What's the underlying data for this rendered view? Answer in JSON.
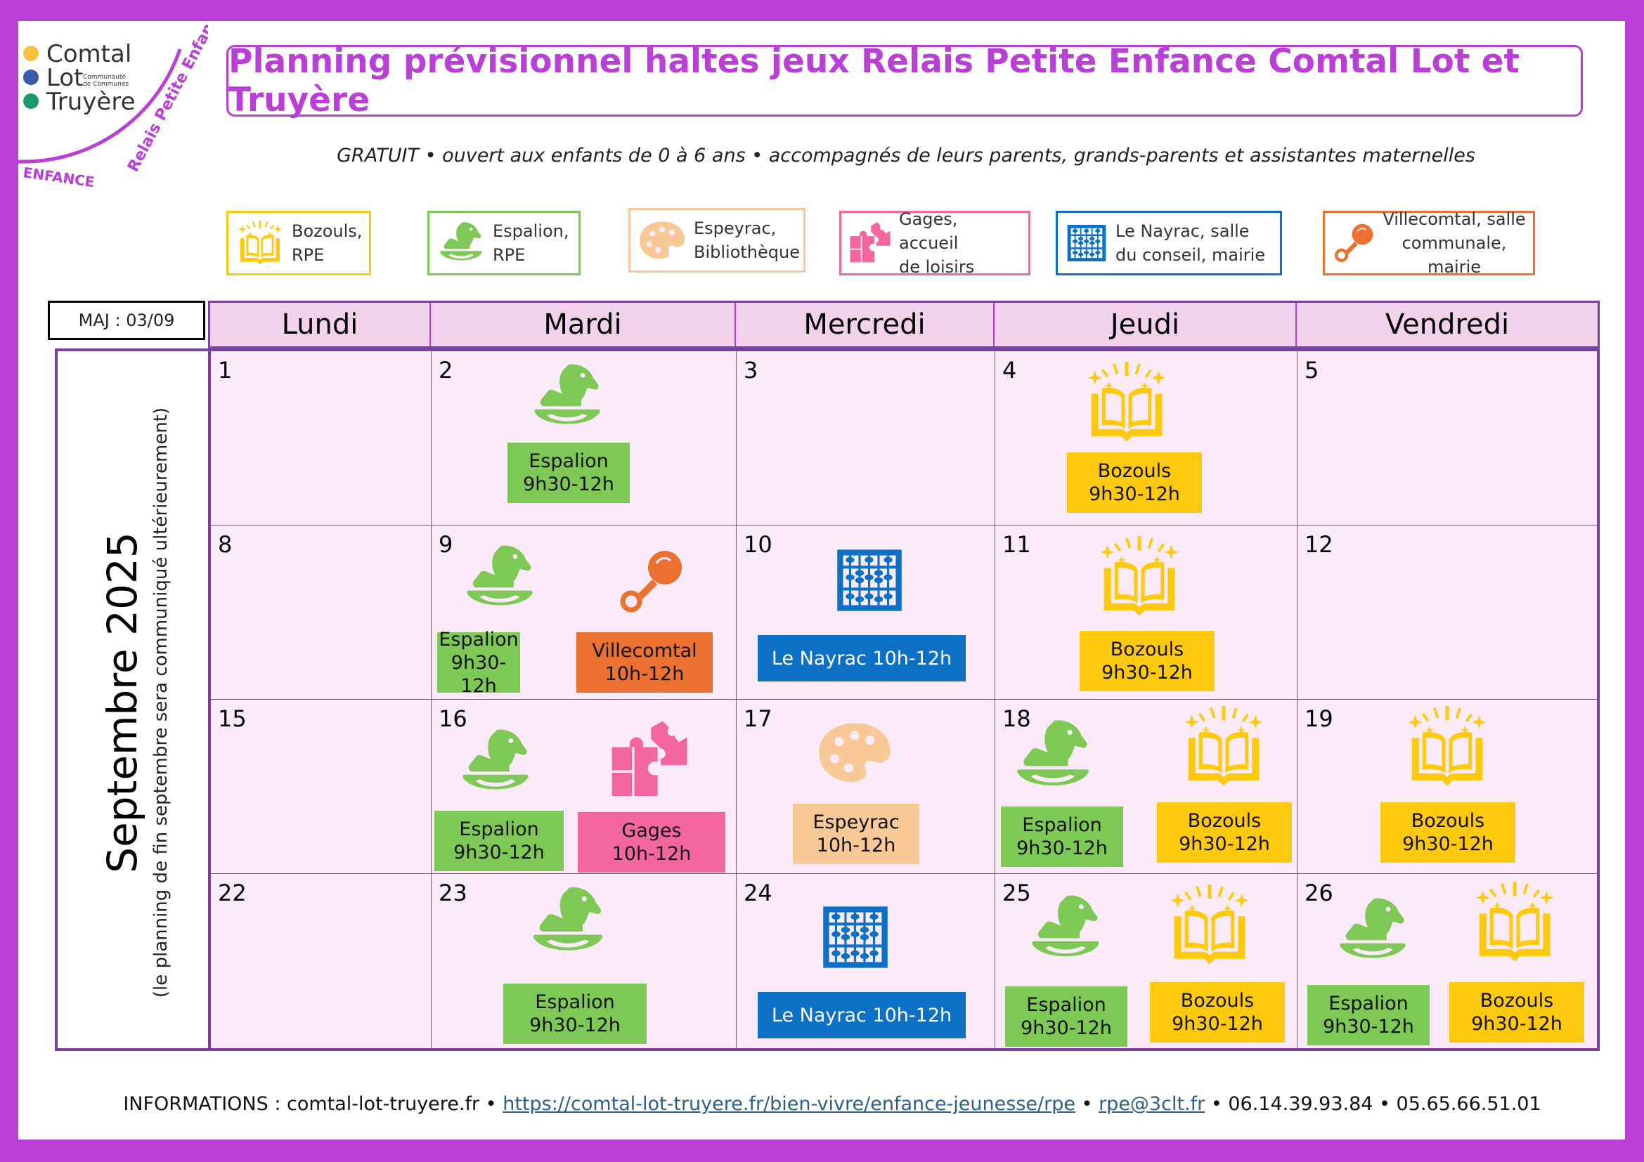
{
  "logo": {
    "line1": "Comtal",
    "line2": "Lot",
    "line3": "Truyère",
    "small1": "Communauté",
    "small2": "de Communes",
    "arc_text": "Relais Petite Enfance",
    "arc_bottom": "ENFANCE"
  },
  "title": "Planning prévisionnel haltes jeux Relais Petite Enfance Comtal Lot et Truyère",
  "subtitle": "GRATUIT • ouvert aux enfants de 0 à 6 ans • accompagnés de leurs parents, grands-parents et assistantes maternelles",
  "colors": {
    "frame": "#b93fd6",
    "espalion": "#7ec855",
    "bozouls": "#ffc90e",
    "villecomtal": "#ec7130",
    "le_nayrac": "#0c70c4",
    "gages": "#f4669e",
    "espeyrac": "#f8c897"
  },
  "legend": {
    "bozouls": {
      "l1": "Bozouls,",
      "l2": "RPE",
      "icon": "book-icon"
    },
    "espalion": {
      "l1": "Espalion,",
      "l2": "RPE",
      "icon": "rocking-horse-icon"
    },
    "espeyrac": {
      "l1": "Espeyrac,",
      "l2": "Bibliothèque",
      "icon": "palette-icon"
    },
    "gages": {
      "l1": "Gages, accueil",
      "l2": "de loisirs",
      "icon": "puzzle-icon"
    },
    "le_nayrac": {
      "l1": "Le Nayrac, salle",
      "l2": "du conseil, mairie",
      "icon": "abacus-icon"
    },
    "villecomtal": {
      "l1": "Villecomtal, salle",
      "l2": "communale, mairie",
      "icon": "rattle-icon"
    }
  },
  "maj": "MAJ : 03/09",
  "weekdays": [
    "Lundi",
    "Mardi",
    "Mercredi",
    "Jeudi",
    "Vendredi"
  ],
  "month": {
    "title": "Septembre 2025",
    "note": "(le planning de fin septembre sera communiqué ultérieurement)"
  },
  "days": [
    "1",
    "2",
    "3",
    "4",
    "5",
    "8",
    "9",
    "10",
    "11",
    "12",
    "15",
    "16",
    "17",
    "18",
    "19",
    "22",
    "23",
    "24",
    "25",
    "26"
  ],
  "events": {
    "espalion": {
      "name": "Espalion",
      "time": "9h30-12h"
    },
    "bozouls": {
      "name": "Bozouls",
      "time": "9h30-12h"
    },
    "villecomtal": {
      "name": "Villecomtal",
      "time": "10h-12h"
    },
    "gages": {
      "name": "Gages",
      "time": "10h-12h"
    },
    "espeyrac": {
      "name": "Espeyrac",
      "time": "10h-12h"
    },
    "le_nayrac": "Le Nayrac 10h-12h"
  },
  "footer": {
    "prefix": "INFORMATIONS : comtal-lot-truyere.fr •",
    "link": "https://comtal-lot-truyere.fr/bien-vivre/enfance-jeunesse/rpe",
    "sep1": "•",
    "email": "rpe@3clt.fr",
    "phones": "• 06.14.39.93.84 • 05.65.66.51.01"
  }
}
